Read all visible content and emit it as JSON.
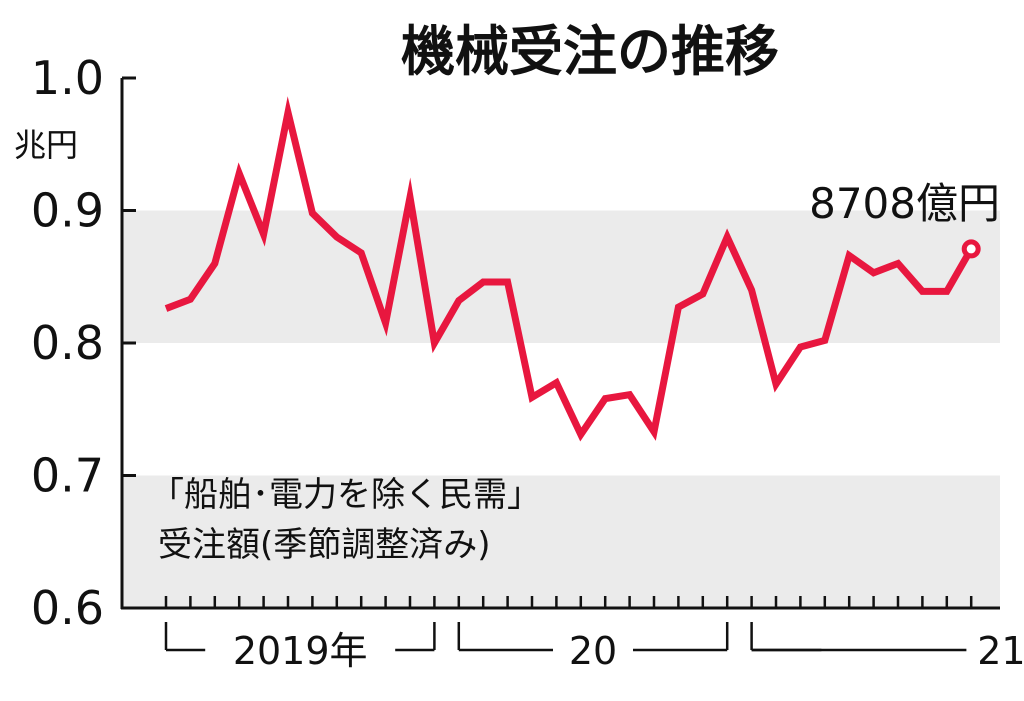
{
  "chart_data": {
    "type": "line",
    "title": "機械受注の推移",
    "ylabel": "兆円",
    "ylim": [
      0.6,
      1.0
    ],
    "yticks": [
      "0.6",
      "0.7",
      "0.8",
      "0.9",
      "1.0"
    ],
    "shaded_bands": [
      [
        0.6,
        0.7
      ],
      [
        0.8,
        0.9
      ]
    ],
    "grid": false,
    "note_line1": "「船舶･電力を除く民需」",
    "note_line2": "受注額(季節調整済み)",
    "end_label": "8708億円",
    "year_labels": [
      "2019年",
      "20",
      "21"
    ],
    "series": [
      {
        "color": "#e8173f",
        "values": [
          0.826,
          0.833,
          0.86,
          0.928,
          0.882,
          0.974,
          0.898,
          0.88,
          0.868,
          0.815,
          0.91,
          0.8,
          0.832,
          0.846,
          0.846,
          0.759,
          0.77,
          0.731,
          0.758,
          0.761,
          0.733,
          0.827,
          0.837,
          0.88,
          0.84,
          0.769,
          0.797,
          0.802,
          0.866,
          0.853,
          0.86,
          0.839,
          0.839,
          0.871
        ]
      }
    ]
  }
}
